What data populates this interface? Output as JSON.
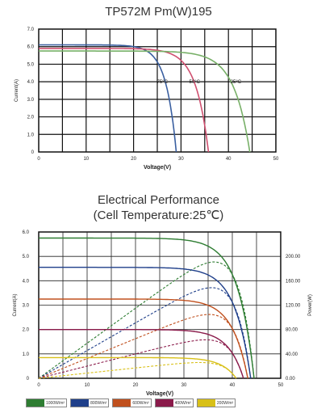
{
  "chart_data": [
    {
      "type": "line",
      "title": "TP572M   Pm(W)195",
      "xlabel": "Voltage(V)",
      "ylabel": "Current(A)",
      "xlim": [
        0,
        50
      ],
      "ylim": [
        0,
        7
      ],
      "x_ticks": [
        "0",
        "10",
        "20",
        "30",
        "40",
        "50"
      ],
      "y_ticks": [
        "0",
        "1.0",
        "2.0",
        "3.0",
        "4.0",
        "5.0",
        "6.0",
        "7.0"
      ],
      "grid": true,
      "series": [
        {
          "name": "75°C",
          "color": "#3a5fa0",
          "isc": 6.1,
          "voc": 29.0,
          "curve_label": "75°C"
        },
        {
          "name": "50°C",
          "color": "#d05070",
          "isc": 5.9,
          "voc": 35.8,
          "curve_label": "50°C"
        },
        {
          "name": "25°C",
          "color": "#78b068",
          "isc": 5.75,
          "voc": 44.5,
          "curve_label": "25°C"
        }
      ]
    },
    {
      "type": "line",
      "title": "Electrical Performance",
      "subtitle": "(Cell Temperature:25℃)",
      "xlabel": "Voltage(V)",
      "ylabel": "Current(A)",
      "y2label": "Power(W)",
      "xlim": [
        0,
        50
      ],
      "ylim": [
        0,
        6
      ],
      "y2lim": [
        0,
        240
      ],
      "x_ticks": [
        "0",
        "10",
        "20",
        "30",
        "40",
        "50"
      ],
      "y_ticks": [
        "0",
        "1.0",
        "2.0",
        "3.0",
        "4.0",
        "5.0",
        "6.0"
      ],
      "y2_ticks": [
        "0.00",
        "40.00",
        "80.00",
        "120.00",
        "160.00",
        "200.00"
      ],
      "grid": true,
      "series": [
        {
          "name": "1000W/m²",
          "color": "#2e7d32",
          "isc": 5.75,
          "voc": 44.5
        },
        {
          "name": "800W/m²",
          "color": "#1f3f8a",
          "isc": 4.55,
          "voc": 43.8
        },
        {
          "name": "600W/m²",
          "color": "#c0501e",
          "isc": 3.25,
          "voc": 43.2
        },
        {
          "name": "400W/m²",
          "color": "#8a1a4a",
          "isc": 2.0,
          "voc": 42.3
        },
        {
          "name": "200W/m²",
          "color": "#d8c018",
          "isc": 0.85,
          "voc": 40.8
        }
      ]
    }
  ]
}
